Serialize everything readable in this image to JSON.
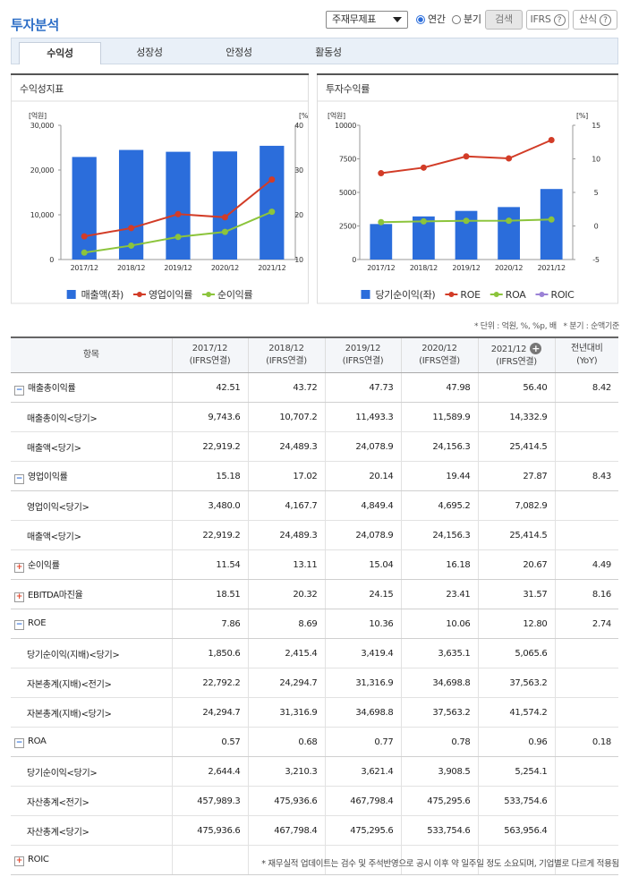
{
  "header": {
    "title": "투자분석",
    "select": "주재무제표",
    "radios": [
      "연간",
      "분기"
    ],
    "buttons": [
      "검색",
      "IFRS",
      "산식"
    ]
  },
  "tabs": [
    "수익성",
    "성장성",
    "안정성",
    "활동성"
  ],
  "chart_data": [
    {
      "type": "combo",
      "title": "수익성지표",
      "y_unit": "[억원]",
      "y2_unit": "[%]",
      "categories": [
        "2017/12",
        "2018/12",
        "2019/12",
        "2020/12",
        "2021/12"
      ],
      "ylim": [
        0,
        30000
      ],
      "yticks": [
        0,
        {
          "value": 10000,
          "label": "10,000"
        },
        {
          "value": 20000,
          "label": "20,000"
        },
        {
          "value": 30000,
          "label": "30,000"
        }
      ],
      "y2lim": [
        10,
        40
      ],
      "y2ticks": [
        10,
        20,
        30,
        40
      ],
      "series": [
        {
          "name": "매출액(좌)",
          "type": "bar",
          "color": "#2b6ddb",
          "values": [
            22919.2,
            24489.3,
            24078.9,
            24156.3,
            25414.5
          ]
        },
        {
          "name": "영업이익률",
          "type": "line",
          "axis": "y2",
          "color": "#d23c27",
          "values": [
            15.18,
            17.02,
            20.14,
            19.44,
            27.87
          ]
        },
        {
          "name": "순이익률",
          "type": "line",
          "axis": "y2",
          "color": "#8cc43c",
          "values": [
            11.54,
            13.11,
            15.04,
            16.18,
            20.67
          ]
        }
      ]
    },
    {
      "type": "combo",
      "title": "투자수익률",
      "y_unit": "[억원]",
      "y2_unit": "[%]",
      "categories": [
        "2017/12",
        "2018/12",
        "2019/12",
        "2020/12",
        "2021/12"
      ],
      "ylim": [
        0,
        10000
      ],
      "yticks": [
        0,
        2500,
        5000,
        7500,
        10000
      ],
      "y2lim": [
        -5,
        15
      ],
      "y2ticks": [
        -5,
        0,
        5,
        10,
        15
      ],
      "series": [
        {
          "name": "당기순이익(좌)",
          "type": "bar",
          "color": "#2b6ddb",
          "values": [
            2644.4,
            3210.3,
            3621.4,
            3908.5,
            5254.1
          ]
        },
        {
          "name": "ROE",
          "type": "line",
          "axis": "y2",
          "color": "#d23c27",
          "values": [
            7.86,
            8.69,
            10.36,
            10.06,
            12.8
          ]
        },
        {
          "name": "ROA",
          "type": "line",
          "axis": "y2",
          "color": "#8cc43c",
          "values": [
            0.57,
            0.68,
            0.77,
            0.78,
            0.96
          ]
        },
        {
          "name": "ROIC",
          "type": "line",
          "axis": "y2",
          "color": "#9b82d6",
          "values": [
            null,
            null,
            null,
            null,
            null
          ]
        }
      ]
    }
  ],
  "notes": [
    "* 단위 : 억원, %, %p, 배",
    "* 분기 : 순액기준"
  ],
  "table": {
    "header": {
      "item": "항목",
      "periods": [
        {
          "period": "2017/12",
          "basis": "(IFRS연결)"
        },
        {
          "period": "2018/12",
          "basis": "(IFRS연결)"
        },
        {
          "period": "2019/12",
          "basis": "(IFRS연결)"
        },
        {
          "period": "2020/12",
          "basis": "(IFRS연결)"
        },
        {
          "period": "2021/12",
          "basis": "(IFRS연결)"
        }
      ],
      "yoy": [
        "전년대비",
        "(YoY)"
      ]
    },
    "groups": [
      {
        "label": "매출총이익률",
        "values": [
          "42.51",
          "43.72",
          "47.73",
          "47.98",
          "56.40"
        ],
        "yoy": "8.42",
        "children": [
          {
            "label": "매출총이익<당기>",
            "values": [
              "9,743.6",
              "10,707.2",
              "11,493.3",
              "11,589.9",
              "14,332.9"
            ]
          },
          {
            "label": "매출액<당기>",
            "values": [
              "22,919.2",
              "24,489.3",
              "24,078.9",
              "24,156.3",
              "25,414.5"
            ]
          }
        ]
      },
      {
        "label": "영업이익률",
        "values": [
          "15.18",
          "17.02",
          "20.14",
          "19.44",
          "27.87"
        ],
        "yoy": "8.43",
        "children": [
          {
            "label": "영업이익<당기>",
            "values": [
              "3,480.0",
              "4,167.7",
              "4,849.4",
              "4,695.2",
              "7,082.9"
            ]
          },
          {
            "label": "매출액<당기>",
            "values": [
              "22,919.2",
              "24,489.3",
              "24,078.9",
              "24,156.3",
              "25,414.5"
            ]
          }
        ]
      },
      {
        "label": "순이익률",
        "values": [
          "11.54",
          "13.11",
          "15.04",
          "16.18",
          "20.67"
        ],
        "yoy": "4.49",
        "children": []
      },
      {
        "label": "EBITDA마진율",
        "values": [
          "18.51",
          "20.32",
          "24.15",
          "23.41",
          "31.57"
        ],
        "yoy": "8.16",
        "children": []
      },
      {
        "label": "ROE",
        "values": [
          "7.86",
          "8.69",
          "10.36",
          "10.06",
          "12.80"
        ],
        "yoy": "2.74",
        "children": [
          {
            "label": "당기순이익(지배)<당기>",
            "values": [
              "1,850.6",
              "2,415.4",
              "3,419.4",
              "3,635.1",
              "5,065.6"
            ]
          },
          {
            "label": "자본총계(지배)<전기>",
            "values": [
              "22,792.2",
              "24,294.7",
              "31,316.9",
              "34,698.8",
              "37,563.2"
            ]
          },
          {
            "label": "자본총계(지배)<당기>",
            "values": [
              "24,294.7",
              "31,316.9",
              "34,698.8",
              "37,563.2",
              "41,574.2"
            ]
          }
        ]
      },
      {
        "label": "ROA",
        "values": [
          "0.57",
          "0.68",
          "0.77",
          "0.78",
          "0.96"
        ],
        "yoy": "0.18",
        "children": [
          {
            "label": "당기순이익<당기>",
            "values": [
              "2,644.4",
              "3,210.3",
              "3,621.4",
              "3,908.5",
              "5,254.1"
            ]
          },
          {
            "label": "자산총계<전기>",
            "values": [
              "457,989.3",
              "475,936.6",
              "467,798.4",
              "475,295.6",
              "533,754.6"
            ]
          },
          {
            "label": "자산총계<당기>",
            "values": [
              "475,936.6",
              "467,798.4",
              "475,295.6",
              "533,754.6",
              "563,956.4"
            ]
          }
        ]
      },
      {
        "label": "ROIC",
        "values": [],
        "children": []
      }
    ]
  },
  "footer": "* 재무실적 업데이트는 검수 및 주석반영으로 공시 이후 약 일주일 정도 소요되며, 기업별로 다르게 적용됨"
}
